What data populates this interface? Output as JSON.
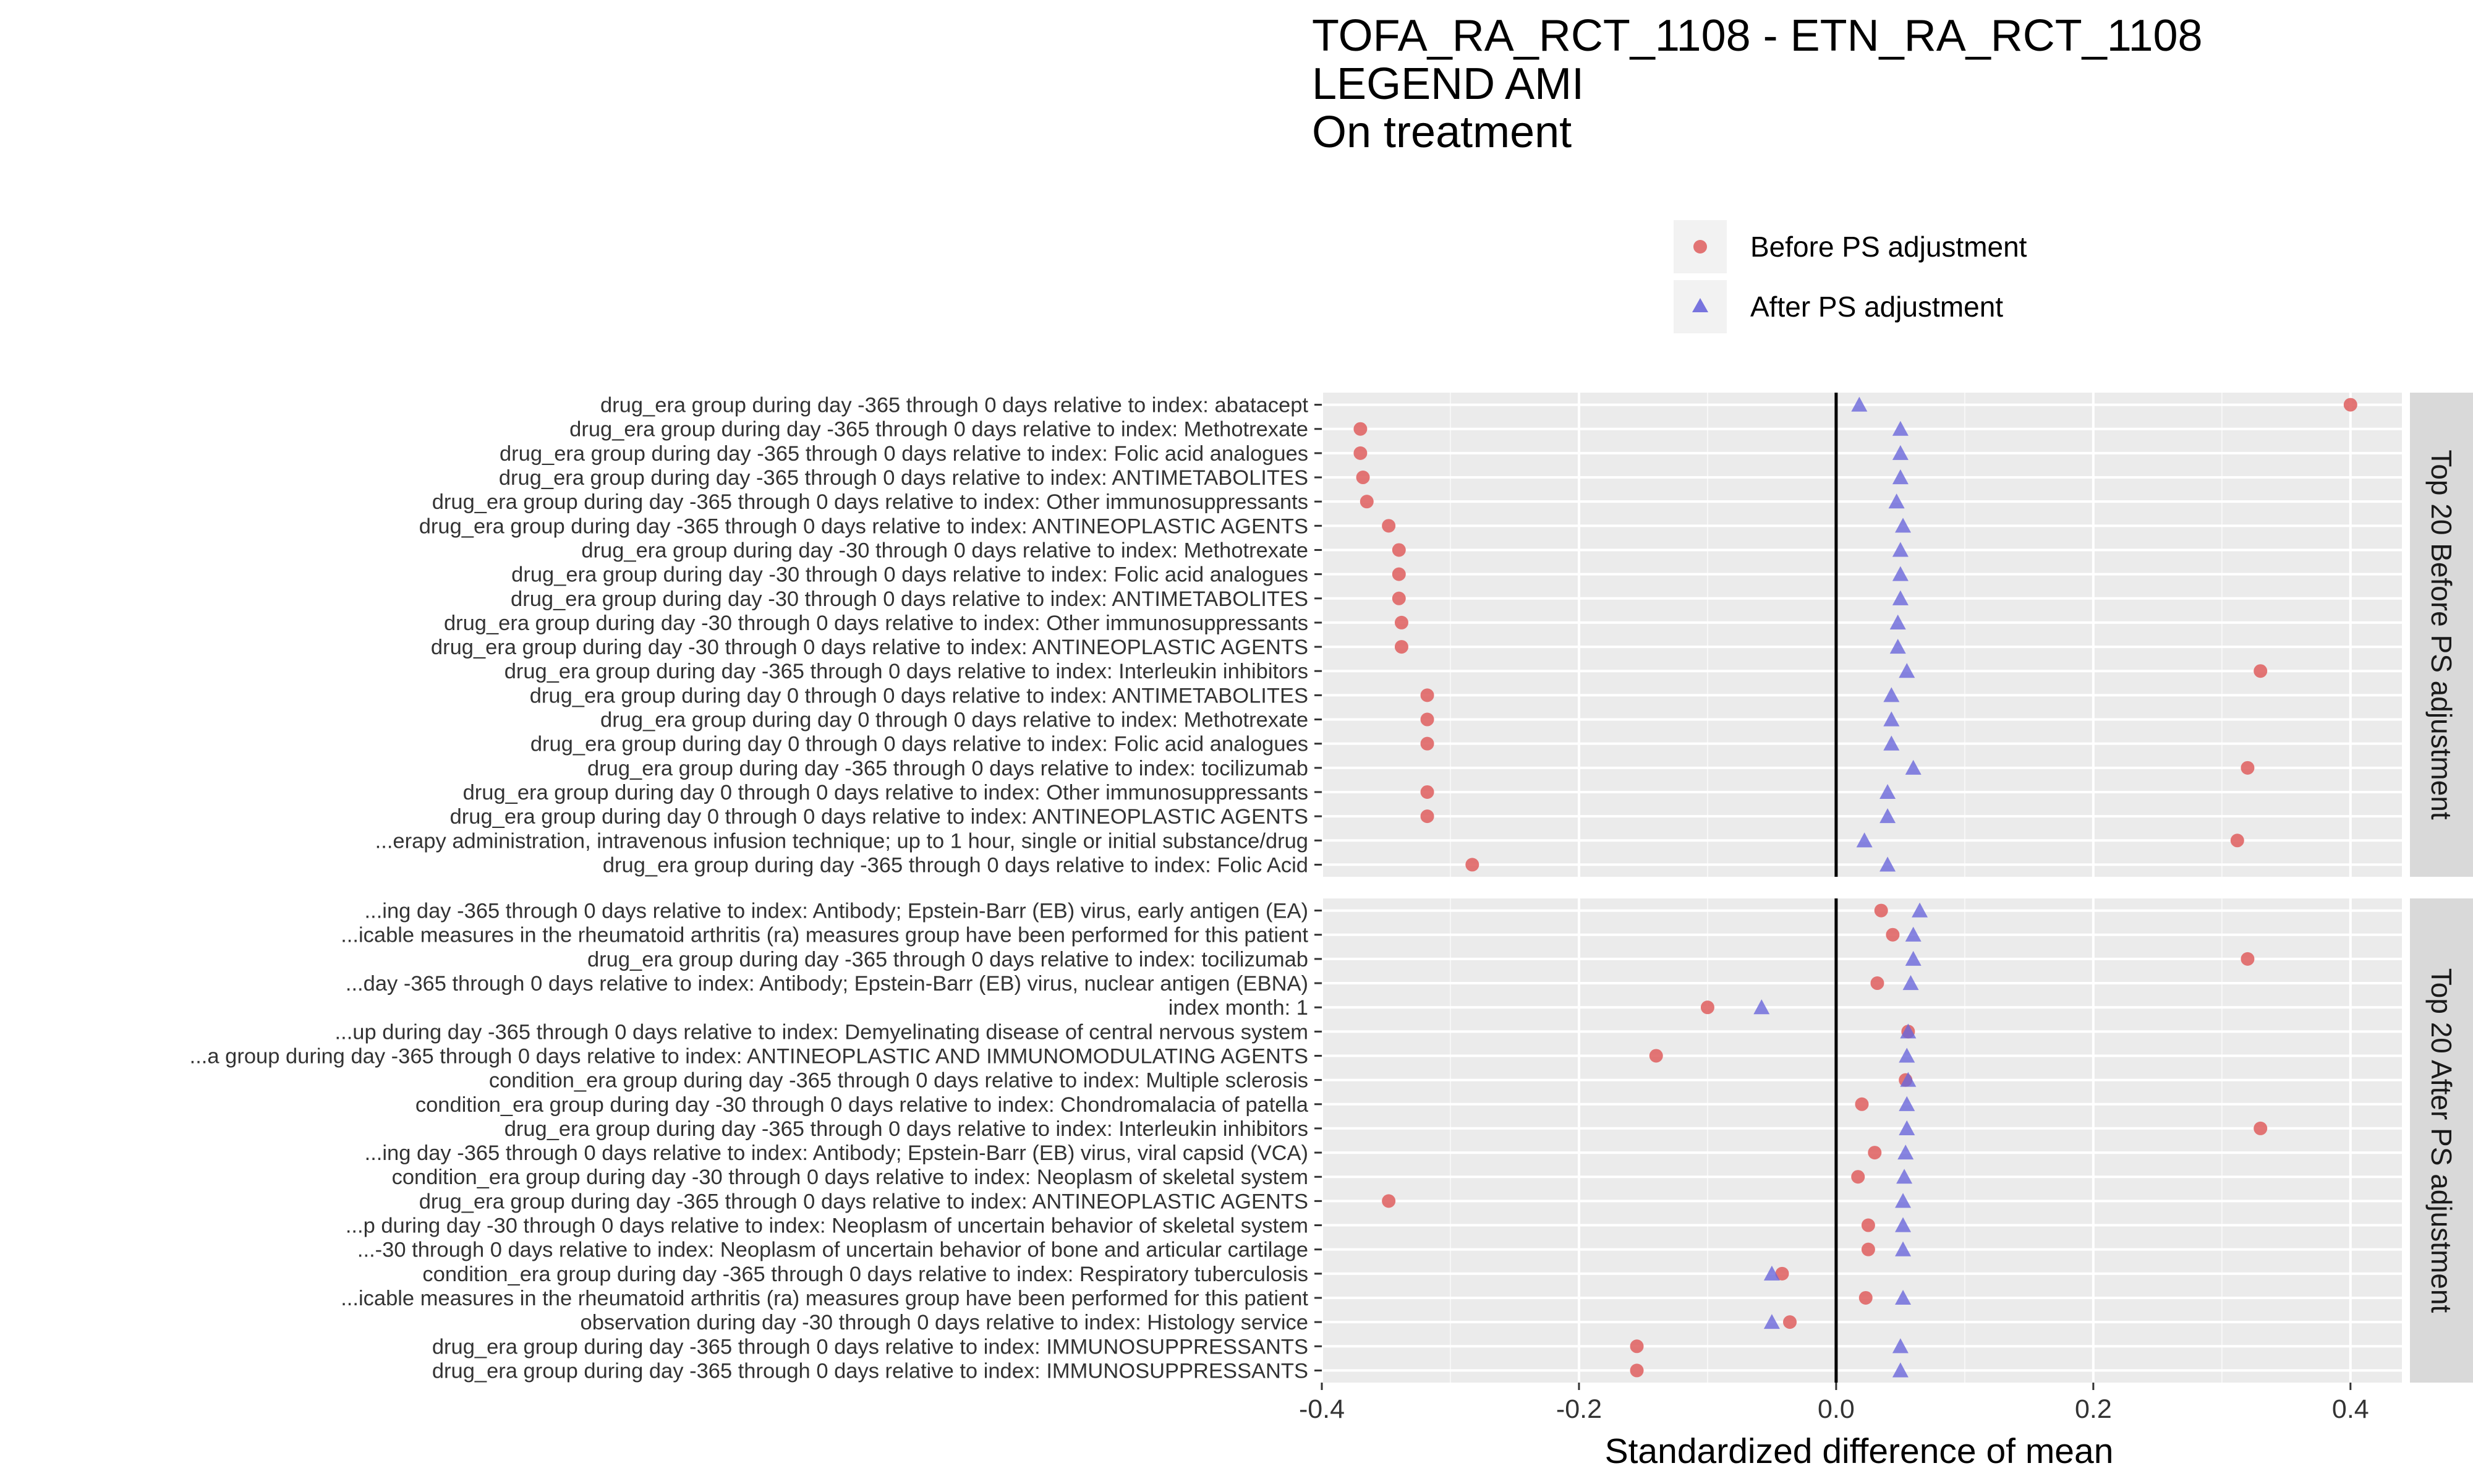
{
  "chart_data": {
    "type": "scatter",
    "title": [
      "TOFA_RA_RCT_1108 - ETN_RA_RCT_1108",
      "LEGEND AMI",
      "On treatment"
    ],
    "xlabel": "Standardized difference of mean",
    "xlim": [
      -0.4,
      0.44
    ],
    "xticks": [
      -0.4,
      -0.2,
      0.0,
      0.2,
      0.4
    ],
    "xtick_labels": [
      "-0.4",
      "-0.2",
      "0.0",
      "0.2",
      "0.4"
    ],
    "reference_line": 0,
    "legend": [
      {
        "name": "Before PS adjustment",
        "shape": "circle",
        "color": "#E06666"
      },
      {
        "name": "After PS adjustment",
        "shape": "triangle",
        "color": "#6A66DB"
      }
    ],
    "colors": {
      "before": "#E06666",
      "after": "#6A66DB",
      "panel_bg": "#EBEBEB",
      "strip_bg": "#D9D9D9"
    },
    "panels": [
      {
        "strip": "Top 20 Before PS adjustment",
        "rows": [
          {
            "label": "drug_era group during day -365 through 0 days relative to index: abatacept",
            "before": 0.4,
            "after": 0.018
          },
          {
            "label": "drug_era group during day -365 through 0 days relative to index: Methotrexate",
            "before": -0.37,
            "after": 0.05
          },
          {
            "label": "drug_era group during day -365 through 0 days relative to index: Folic acid analogues",
            "before": -0.37,
            "after": 0.05
          },
          {
            "label": "drug_era group during day -365 through 0 days relative to index: ANTIMETABOLITES",
            "before": -0.368,
            "after": 0.05
          },
          {
            "label": "drug_era group during day -365 through 0 days relative to index: Other immunosuppressants",
            "before": -0.365,
            "after": 0.047
          },
          {
            "label": "drug_era group during day -365 through 0 days relative to index: ANTINEOPLASTIC AGENTS",
            "before": -0.348,
            "after": 0.052
          },
          {
            "label": "drug_era group during day -30 through 0 days relative to index: Methotrexate",
            "before": -0.34,
            "after": 0.05
          },
          {
            "label": "drug_era group during day -30 through 0 days relative to index: Folic acid analogues",
            "before": -0.34,
            "after": 0.05
          },
          {
            "label": "drug_era group during day -30 through 0 days relative to index: ANTIMETABOLITES",
            "before": -0.34,
            "after": 0.05
          },
          {
            "label": "drug_era group during day -30 through 0 days relative to index: Other immunosuppressants",
            "before": -0.338,
            "after": 0.048
          },
          {
            "label": "drug_era group during day -30 through 0 days relative to index: ANTINEOPLASTIC AGENTS",
            "before": -0.338,
            "after": 0.048
          },
          {
            "label": "drug_era group during day -365 through 0 days relative to index: Interleukin inhibitors",
            "before": 0.33,
            "after": 0.055
          },
          {
            "label": "drug_era group during day 0 through 0 days relative to index: ANTIMETABOLITES",
            "before": -0.318,
            "after": 0.043
          },
          {
            "label": "drug_era group during day 0 through 0 days relative to index: Methotrexate",
            "before": -0.318,
            "after": 0.043
          },
          {
            "label": "drug_era group during day 0 through 0 days relative to index: Folic acid analogues",
            "before": -0.318,
            "after": 0.043
          },
          {
            "label": "drug_era group during day -365 through 0 days relative to index: tocilizumab",
            "before": 0.32,
            "after": 0.06
          },
          {
            "label": "drug_era group during day 0 through 0 days relative to index: Other immunosuppressants",
            "before": -0.318,
            "after": 0.04
          },
          {
            "label": "drug_era group during day 0 through 0 days relative to index: ANTINEOPLASTIC AGENTS",
            "before": -0.318,
            "after": 0.04
          },
          {
            "label": "...erapy administration, intravenous infusion technique; up to 1 hour, single or initial substance/drug",
            "before": 0.312,
            "after": 0.022
          },
          {
            "label": "drug_era group during day -365 through 0 days relative to index: Folic Acid",
            "before": -0.283,
            "after": 0.04
          }
        ]
      },
      {
        "strip": "Top 20 After PS adjustment",
        "rows": [
          {
            "label": "...ing day -365 through 0 days relative to index: Antibody; Epstein-Barr (EB) virus, early antigen (EA)",
            "before": 0.035,
            "after": 0.065
          },
          {
            "label": "...icable measures in the rheumatoid arthritis (ra) measures group have been performed for this patient",
            "before": 0.044,
            "after": 0.06
          },
          {
            "label": "drug_era group during day -365 through 0 days relative to index: tocilizumab",
            "before": 0.32,
            "after": 0.06
          },
          {
            "label": "...day -365 through 0 days relative to index: Antibody; Epstein-Barr (EB) virus, nuclear antigen (EBNA)",
            "before": 0.032,
            "after": 0.058
          },
          {
            "label": "index month: 1",
            "before": -0.1,
            "after": -0.058
          },
          {
            "label": "...up during day -365 through 0 days relative to index: Demyelinating disease of central nervous system",
            "before": 0.056,
            "after": 0.056
          },
          {
            "label": "...a group during day -365 through 0 days relative to index: ANTINEOPLASTIC AND IMMUNOMODULATING AGENTS",
            "before": -0.14,
            "after": 0.055
          },
          {
            "label": "condition_era group during day -365 through 0 days relative to index: Multiple sclerosis",
            "before": 0.054,
            "after": 0.056
          },
          {
            "label": "condition_era group during day -30 through 0 days relative to index: Chondromalacia of patella",
            "before": 0.02,
            "after": 0.055
          },
          {
            "label": "drug_era group during day -365 through 0 days relative to index: Interleukin inhibitors",
            "before": 0.33,
            "after": 0.055
          },
          {
            "label": "...ing day -365 through 0 days relative to index: Antibody; Epstein-Barr (EB) virus, viral capsid (VCA)",
            "before": 0.03,
            "after": 0.054
          },
          {
            "label": "condition_era group during day -30 through 0 days relative to index: Neoplasm of skeletal system",
            "before": 0.017,
            "after": 0.053
          },
          {
            "label": "drug_era group during day -365 through 0 days relative to index: ANTINEOPLASTIC AGENTS",
            "before": -0.348,
            "after": 0.052
          },
          {
            "label": "...p during day -30 through 0 days relative to index: Neoplasm of uncertain behavior of skeletal system",
            "before": 0.025,
            "after": 0.052
          },
          {
            "label": "...-30 through 0 days relative to index: Neoplasm of uncertain behavior of bone and articular cartilage",
            "before": 0.025,
            "after": 0.052
          },
          {
            "label": "condition_era group during day -365 through 0 days relative to index: Respiratory tuberculosis",
            "before": -0.042,
            "after": -0.05
          },
          {
            "label": "...icable measures in the rheumatoid arthritis (ra) measures group have been performed for this patient",
            "before": 0.023,
            "after": 0.052
          },
          {
            "label": "observation during day -30 through 0 days relative to index: Histology service",
            "before": -0.036,
            "after": -0.05
          },
          {
            "label": "drug_era group during day -365 through 0 days relative to index: IMMUNOSUPPRESSANTS",
            "before": -0.155,
            "after": 0.05
          },
          {
            "label": "drug_era group during day -365 through 0 days relative to index: IMMUNOSUPPRESSANTS",
            "before": -0.155,
            "after": 0.05
          }
        ]
      }
    ]
  }
}
